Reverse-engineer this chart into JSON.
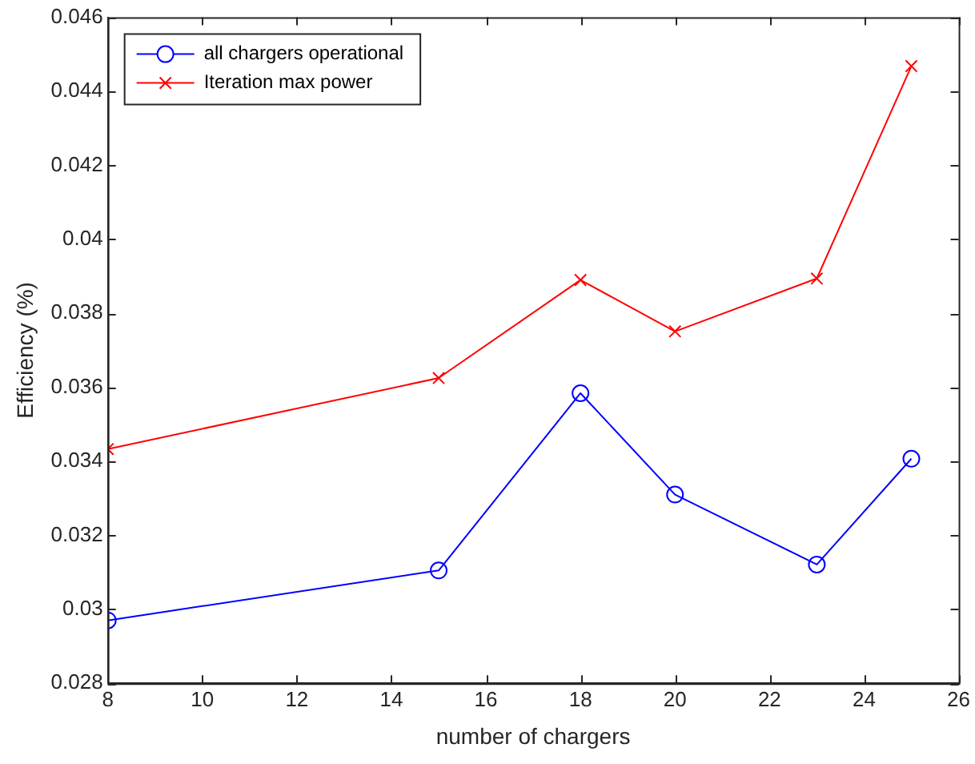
{
  "chart_data": {
    "type": "line",
    "xlabel": "number of chargers",
    "ylabel": "Efficiency (%)",
    "x": [
      8,
      15,
      18,
      20,
      23,
      25
    ],
    "series": [
      {
        "name": "all chargers operational",
        "color": "#0000ff",
        "marker": "circle",
        "values": [
          0.0297,
          0.03105,
          0.03584,
          0.0331,
          0.03121,
          0.03407
        ]
      },
      {
        "name": "Iteration max power",
        "color": "#ff0000",
        "marker": "cross",
        "values": [
          0.03433,
          0.03625,
          0.0389,
          0.03751,
          0.03894,
          0.04468
        ]
      }
    ],
    "xlim": [
      8,
      26
    ],
    "xticks": [
      8,
      10,
      12,
      14,
      16,
      18,
      20,
      22,
      24,
      26
    ],
    "ylim": [
      0.028,
      0.046
    ],
    "yticks": [
      0.028,
      0.03,
      0.032,
      0.034,
      0.036,
      0.038,
      0.04,
      0.042,
      0.044,
      0.046
    ],
    "grid": false,
    "legend": "top left",
    "line_style": "solid"
  }
}
